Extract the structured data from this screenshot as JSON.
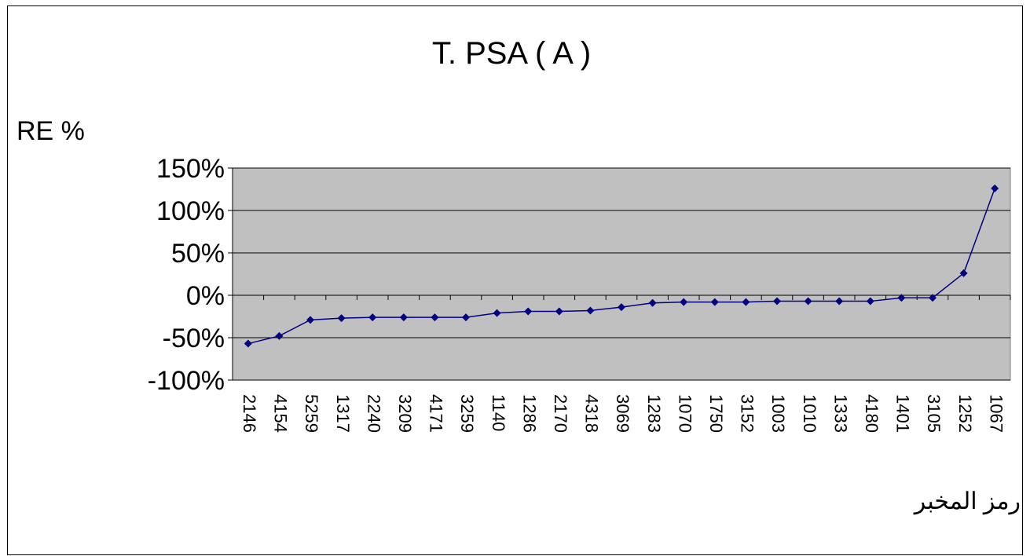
{
  "chart_data": {
    "type": "line",
    "title": "T. PSA ( A )",
    "ylabel": "RE %",
    "xlabel": "رمز المخبر",
    "ylim": [
      -100,
      150
    ],
    "y_ticks": [
      150,
      100,
      50,
      0,
      -50,
      -100
    ],
    "y_tick_labels": [
      "150%",
      "100%",
      "50%",
      "0%",
      "-50%",
      "-100%"
    ],
    "grid": true,
    "legend": "none",
    "categories": [
      "2146",
      "4154",
      "5259",
      "1317",
      "2240",
      "3209",
      "4171",
      "3259",
      "1140",
      "1286",
      "2170",
      "4318",
      "3069",
      "1283",
      "1070",
      "1750",
      "3152",
      "1003",
      "1010",
      "1333",
      "4180",
      "1401",
      "3105",
      "1252",
      "1067"
    ],
    "series": [
      {
        "values": [
          -57,
          -48,
          -29,
          -27,
          -26,
          -26,
          -26,
          -26,
          -21,
          -19,
          -19,
          -18,
          -14,
          -9,
          -8,
          -8,
          -8,
          -7,
          -7,
          -7,
          -7,
          -3,
          -3,
          26,
          126
        ]
      }
    ],
    "colors": {
      "plot_bg": "#c0c0c0",
      "line": "#000080",
      "grid": "#000000"
    }
  }
}
